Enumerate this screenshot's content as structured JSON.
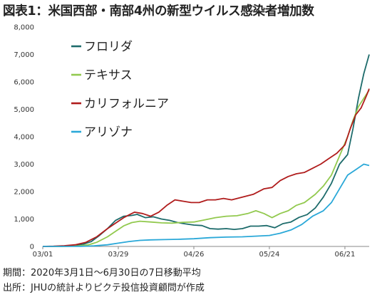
{
  "title": "図表1：米国西部・南部4州の新型ウイルス感染者増加数",
  "footer": {
    "period": "期間：2020年3月1日～6月30日の7日移動平均",
    "source": "出所：JHUの統計よりピクテ投信投資顧問が作成"
  },
  "chart_data": {
    "type": "line",
    "title": "図表1：米国西部・南部4州の新型ウイルス感染者増加数",
    "xlabel": "",
    "ylabel": "",
    "x_start": "2020-03-01",
    "x_end": "2020-06-30",
    "xticks": [
      {
        "date": "2020-03-01",
        "label": "03/01"
      },
      {
        "date": "2020-03-29",
        "label": "03/29"
      },
      {
        "date": "2020-04-26",
        "label": "04/26"
      },
      {
        "date": "2020-05-24",
        "label": "05/24"
      },
      {
        "date": "2020-06-21",
        "label": "06/21"
      }
    ],
    "ylim": [
      0,
      8000
    ],
    "yticks": [
      {
        "value": 0,
        "label": "0"
      },
      {
        "value": 1000,
        "label": "1,000"
      },
      {
        "value": 2000,
        "label": "2,000"
      },
      {
        "value": 3000,
        "label": "3,000"
      },
      {
        "value": 4000,
        "label": "4,000"
      },
      {
        "value": 5000,
        "label": "5,000"
      },
      {
        "value": 6000,
        "label": "6,000"
      },
      {
        "value": 7000,
        "label": "7,000"
      },
      {
        "value": 8000,
        "label": "8,000"
      }
    ],
    "grid": false,
    "legend_position": "top-left",
    "series": [
      {
        "name": "フロリダ",
        "color": "#1d6b6b",
        "points": [
          [
            "2020-03-01",
            0
          ],
          [
            "2020-03-08",
            2
          ],
          [
            "2020-03-12",
            20
          ],
          [
            "2020-03-16",
            80
          ],
          [
            "2020-03-19",
            180
          ],
          [
            "2020-03-22",
            400
          ],
          [
            "2020-03-25",
            650
          ],
          [
            "2020-03-28",
            950
          ],
          [
            "2020-03-31",
            1100
          ],
          [
            "2020-04-03",
            1130
          ],
          [
            "2020-04-05",
            1170
          ],
          [
            "2020-04-08",
            1050
          ],
          [
            "2020-04-11",
            1080
          ],
          [
            "2020-04-14",
            1000
          ],
          [
            "2020-04-17",
            950
          ],
          [
            "2020-04-20",
            870
          ],
          [
            "2020-04-23",
            820
          ],
          [
            "2020-04-26",
            780
          ],
          [
            "2020-04-29",
            760
          ],
          [
            "2020-05-02",
            650
          ],
          [
            "2020-05-05",
            630
          ],
          [
            "2020-05-08",
            650
          ],
          [
            "2020-05-11",
            620
          ],
          [
            "2020-05-14",
            650
          ],
          [
            "2020-05-17",
            740
          ],
          [
            "2020-05-20",
            740
          ],
          [
            "2020-05-23",
            760
          ],
          [
            "2020-05-26",
            680
          ],
          [
            "2020-05-29",
            830
          ],
          [
            "2020-06-01",
            890
          ],
          [
            "2020-06-04",
            1060
          ],
          [
            "2020-06-07",
            1160
          ],
          [
            "2020-06-10",
            1400
          ],
          [
            "2020-06-13",
            1800
          ],
          [
            "2020-06-16",
            2300
          ],
          [
            "2020-06-19",
            3000
          ],
          [
            "2020-06-22",
            3350
          ],
          [
            "2020-06-24",
            4300
          ],
          [
            "2020-06-26",
            5400
          ],
          [
            "2020-06-28",
            6300
          ],
          [
            "2020-06-30",
            7000
          ]
        ]
      },
      {
        "name": "テキサス",
        "color": "#92c94e",
        "points": [
          [
            "2020-03-01",
            0
          ],
          [
            "2020-03-10",
            2
          ],
          [
            "2020-03-14",
            15
          ],
          [
            "2020-03-18",
            60
          ],
          [
            "2020-03-21",
            150
          ],
          [
            "2020-03-25",
            350
          ],
          [
            "2020-03-28",
            550
          ],
          [
            "2020-03-31",
            750
          ],
          [
            "2020-04-03",
            870
          ],
          [
            "2020-04-06",
            920
          ],
          [
            "2020-04-10",
            890
          ],
          [
            "2020-04-14",
            860
          ],
          [
            "2020-04-18",
            850
          ],
          [
            "2020-04-22",
            880
          ],
          [
            "2020-04-26",
            890
          ],
          [
            "2020-04-30",
            970
          ],
          [
            "2020-05-04",
            1050
          ],
          [
            "2020-05-08",
            1100
          ],
          [
            "2020-05-12",
            1120
          ],
          [
            "2020-05-16",
            1200
          ],
          [
            "2020-05-19",
            1300
          ],
          [
            "2020-05-22",
            1200
          ],
          [
            "2020-05-25",
            1050
          ],
          [
            "2020-05-28",
            1200
          ],
          [
            "2020-05-31",
            1300
          ],
          [
            "2020-06-03",
            1500
          ],
          [
            "2020-06-06",
            1600
          ],
          [
            "2020-06-10",
            1900
          ],
          [
            "2020-06-13",
            2200
          ],
          [
            "2020-06-16",
            2600
          ],
          [
            "2020-06-19",
            3300
          ],
          [
            "2020-06-22",
            4000
          ],
          [
            "2020-06-24",
            4600
          ],
          [
            "2020-06-26",
            5100
          ],
          [
            "2020-06-28",
            5400
          ],
          [
            "2020-06-30",
            5700
          ]
        ]
      },
      {
        "name": "カリフォルニア",
        "color": "#b01c1c",
        "points": [
          [
            "2020-03-01",
            0
          ],
          [
            "2020-03-05",
            8
          ],
          [
            "2020-03-09",
            25
          ],
          [
            "2020-03-13",
            60
          ],
          [
            "2020-03-17",
            150
          ],
          [
            "2020-03-21",
            350
          ],
          [
            "2020-03-25",
            650
          ],
          [
            "2020-03-28",
            850
          ],
          [
            "2020-03-31",
            1050
          ],
          [
            "2020-04-02",
            1150
          ],
          [
            "2020-04-04",
            1250
          ],
          [
            "2020-04-07",
            1200
          ],
          [
            "2020-04-10",
            1100
          ],
          [
            "2020-04-13",
            1250
          ],
          [
            "2020-04-16",
            1500
          ],
          [
            "2020-04-19",
            1700
          ],
          [
            "2020-04-22",
            1650
          ],
          [
            "2020-04-25",
            1600
          ],
          [
            "2020-04-28",
            1600
          ],
          [
            "2020-05-01",
            1700
          ],
          [
            "2020-05-04",
            1700
          ],
          [
            "2020-05-07",
            1750
          ],
          [
            "2020-05-10",
            1700
          ],
          [
            "2020-05-14",
            1800
          ],
          [
            "2020-05-18",
            1900
          ],
          [
            "2020-05-22",
            2100
          ],
          [
            "2020-05-25",
            2150
          ],
          [
            "2020-05-28",
            2400
          ],
          [
            "2020-05-31",
            2550
          ],
          [
            "2020-06-03",
            2650
          ],
          [
            "2020-06-06",
            2700
          ],
          [
            "2020-06-09",
            2850
          ],
          [
            "2020-06-12",
            3000
          ],
          [
            "2020-06-15",
            3200
          ],
          [
            "2020-06-18",
            3400
          ],
          [
            "2020-06-21",
            3700
          ],
          [
            "2020-06-23",
            4300
          ],
          [
            "2020-06-25",
            4800
          ],
          [
            "2020-06-27",
            5050
          ],
          [
            "2020-06-29",
            5500
          ],
          [
            "2020-06-30",
            5750
          ]
        ]
      },
      {
        "name": "アリゾナ",
        "color": "#2aa8d8",
        "points": [
          [
            "2020-03-01",
            0
          ],
          [
            "2020-03-15",
            2
          ],
          [
            "2020-03-20",
            20
          ],
          [
            "2020-03-25",
            60
          ],
          [
            "2020-03-29",
            120
          ],
          [
            "2020-04-02",
            180
          ],
          [
            "2020-04-06",
            220
          ],
          [
            "2020-04-10",
            240
          ],
          [
            "2020-04-15",
            250
          ],
          [
            "2020-04-20",
            260
          ],
          [
            "2020-04-26",
            280
          ],
          [
            "2020-05-02",
            320
          ],
          [
            "2020-05-08",
            340
          ],
          [
            "2020-05-14",
            350
          ],
          [
            "2020-05-20",
            380
          ],
          [
            "2020-05-24",
            400
          ],
          [
            "2020-05-28",
            480
          ],
          [
            "2020-06-01",
            600
          ],
          [
            "2020-06-05",
            800
          ],
          [
            "2020-06-09",
            1100
          ],
          [
            "2020-06-13",
            1300
          ],
          [
            "2020-06-16",
            1600
          ],
          [
            "2020-06-19",
            2100
          ],
          [
            "2020-06-22",
            2600
          ],
          [
            "2020-06-25",
            2800
          ],
          [
            "2020-06-28",
            3000
          ],
          [
            "2020-06-30",
            2950
          ]
        ]
      }
    ]
  }
}
